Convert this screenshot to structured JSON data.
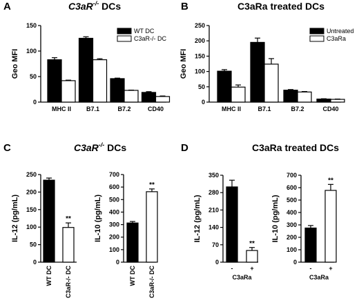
{
  "chart_data": [
    {
      "panel": "A",
      "title_pre": "C3aR",
      "title_sup": "-/-",
      "title_post": " DCs",
      "type": "bar",
      "ylabel": "Geo MFI",
      "ylim": [
        0,
        150
      ],
      "yticks": [
        0,
        50,
        100,
        150
      ],
      "categories": [
        "MHC II",
        "B7.1",
        "B7.2",
        "CD40"
      ],
      "series": [
        {
          "name": "WT DC",
          "color": "#000000",
          "values": [
            83,
            125,
            46,
            19
          ],
          "errors": [
            4,
            3,
            1,
            1.5
          ]
        },
        {
          "name": "C3aR-/- DC",
          "color": "#ffffff",
          "values": [
            42,
            83,
            23,
            11
          ],
          "errors": [
            1,
            2,
            0.5,
            1
          ]
        }
      ],
      "legend": "top-right"
    },
    {
      "panel": "B",
      "title": "C3aRa treated DCs",
      "type": "bar",
      "ylabel": "Geo MFI",
      "ylim": [
        0,
        250
      ],
      "yticks": [
        0,
        50,
        100,
        150,
        200,
        250
      ],
      "categories": [
        "MHC II",
        "B7.1",
        "B7.2",
        "CD40"
      ],
      "series": [
        {
          "name": "Untreated",
          "color": "#000000",
          "values": [
            101,
            195,
            39,
            10
          ],
          "errors": [
            5,
            14,
            2,
            1
          ]
        },
        {
          "name": "C3aRa",
          "color": "#ffffff",
          "values": [
            49,
            124,
            33,
            9
          ],
          "errors": [
            7,
            18,
            1.5,
            1
          ]
        }
      ],
      "legend": "top-right"
    },
    {
      "panel": "C",
      "title_pre": "C3aR",
      "title_sup": "-/-",
      "title_post": " DCs",
      "type": "bar",
      "ylabel": "IL-12 (pg/mL)",
      "ylim": [
        0,
        250
      ],
      "yticks": [
        0,
        50,
        100,
        150,
        200,
        250
      ],
      "categories": [
        "WT DC",
        "C3aR-/- DC"
      ],
      "values": [
        234,
        99
      ],
      "errors": [
        6,
        13
      ],
      "significance": [
        "",
        "**"
      ]
    },
    {
      "type": "bar",
      "ylabel": "IL-10 (pg/mL)",
      "ylim": [
        0,
        700
      ],
      "yticks": [
        0,
        100,
        200,
        300,
        400,
        500,
        600,
        700
      ],
      "categories": [
        "WT DC",
        "C3aR-/- DC"
      ],
      "values": [
        313,
        563
      ],
      "errors": [
        12,
        22
      ],
      "significance": [
        "",
        "**"
      ]
    },
    {
      "panel": "D",
      "title": "C3aRa treated DCs",
      "type": "bar",
      "ylabel": "IL-12 (pg/mL)",
      "ylim": [
        0,
        350
      ],
      "yticks": [
        0,
        70,
        140,
        210,
        280,
        350
      ],
      "categories": [
        "-",
        "+"
      ],
      "group_label": "C3aRa",
      "values": [
        303,
        47
      ],
      "errors": [
        27,
        12
      ],
      "significance": [
        "",
        "**"
      ]
    },
    {
      "type": "bar",
      "ylabel": "IL-10 (pg/mL)",
      "ylim": [
        0,
        700
      ],
      "yticks": [
        0,
        100,
        200,
        300,
        400,
        500,
        600,
        700
      ],
      "categories": [
        "-",
        "+"
      ],
      "group_label": "C3aRa",
      "values": [
        275,
        578
      ],
      "errors": [
        20,
        48
      ],
      "significance": [
        "",
        "**"
      ]
    }
  ]
}
